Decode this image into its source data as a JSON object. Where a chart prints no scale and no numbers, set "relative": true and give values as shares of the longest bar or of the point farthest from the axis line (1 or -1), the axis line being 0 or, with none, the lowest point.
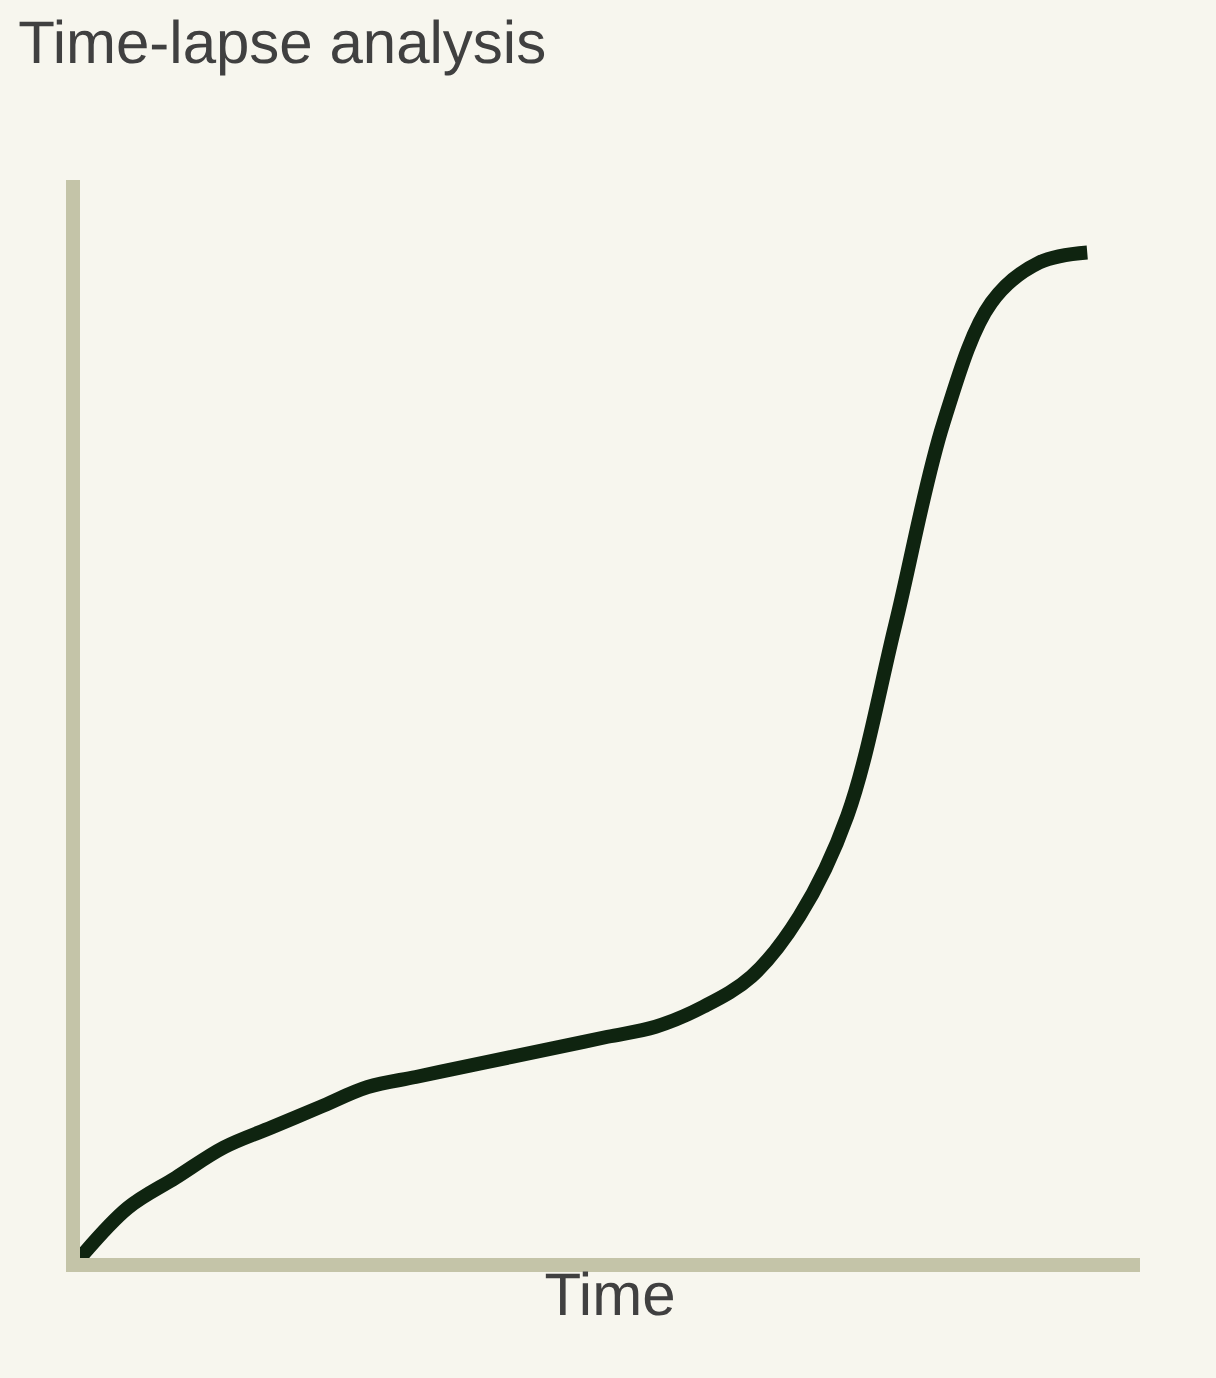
{
  "chart_data": {
    "type": "line",
    "title": "Time-lapse analysis",
    "xlabel": "Time",
    "relative": true,
    "color": "#0f2410",
    "marker": "none",
    "line_style": "solid",
    "grid": false,
    "legend": false,
    "categories": [
      null,
      null,
      null,
      null,
      null,
      null,
      null,
      null,
      null,
      null,
      null,
      null,
      null,
      null,
      null,
      null,
      null,
      null,
      null,
      null,
      null,
      null
    ],
    "values": [
      0,
      0.05,
      0.08,
      0.11,
      0.13,
      0.15,
      0.17,
      0.18,
      0.19,
      0.2,
      0.21,
      0.22,
      0.23,
      0.25,
      0.28,
      0.34,
      0.44,
      0.63,
      0.83,
      0.95,
      0.99,
      1.0
    ]
  }
}
